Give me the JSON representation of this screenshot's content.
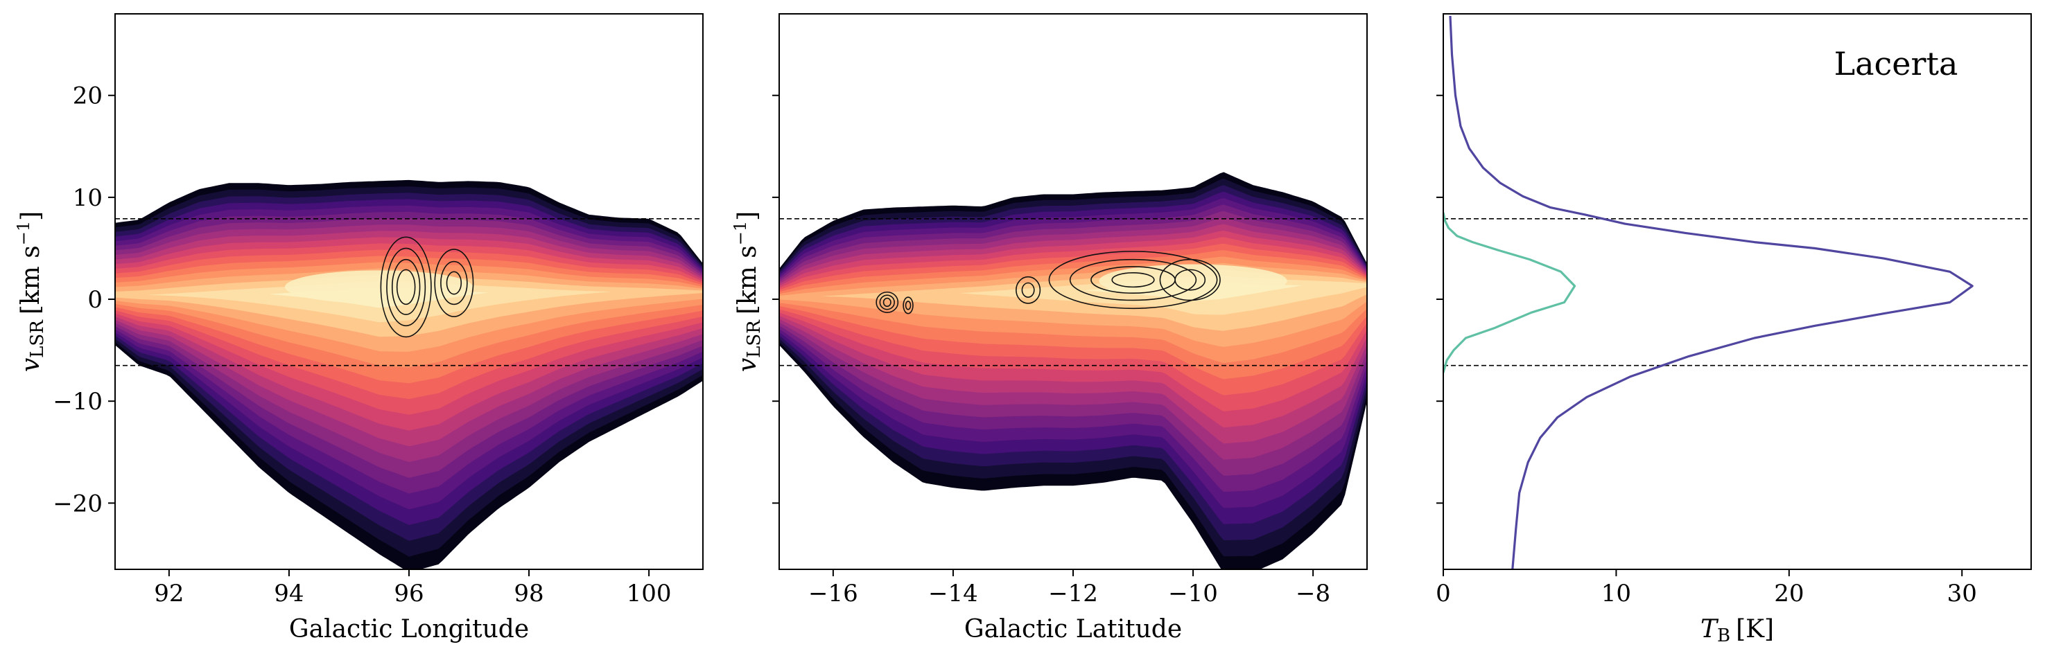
{
  "figure": {
    "panels": [
      "longitude-velocity",
      "latitude-velocity",
      "spectrum"
    ]
  },
  "chart_data": [
    {
      "type": "heatmap",
      "title": "",
      "xlabel": "Galactic Longitude",
      "ylabel_main": "v",
      "ylabel_sub": "LSR",
      "ylabel_unit": "[km s",
      "ylabel_exp": "−1",
      "ylabel_end": "]",
      "xlim": [
        91.1,
        100.9
      ],
      "ylim": [
        -26.5,
        28
      ],
      "xticks": [
        92,
        94,
        96,
        98,
        100
      ],
      "xtick_labels": [
        "92",
        "94",
        "96",
        "98",
        "100"
      ],
      "yticks": [
        20,
        10,
        0,
        -10,
        -20
      ],
      "ytick_labels": [
        "20",
        "10",
        "0",
        "−10",
        "−20"
      ],
      "hlines": [
        7.9,
        -6.5
      ],
      "colormap": "magma",
      "envelope": {
        "x": [
          91.1,
          91.5,
          92.0,
          92.5,
          93.0,
          93.5,
          94.0,
          94.5,
          95.0,
          95.5,
          96.0,
          96.5,
          97.0,
          97.5,
          98.0,
          98.5,
          99.0,
          99.5,
          100.0,
          100.5,
          100.9
        ],
        "top": [
          7.5,
          7.8,
          9.5,
          10.8,
          11.4,
          11.4,
          11.2,
          11.3,
          11.5,
          11.6,
          11.7,
          11.5,
          11.6,
          11.5,
          11.0,
          9.5,
          8.3,
          8.0,
          7.9,
          6.5,
          3.5
        ],
        "bottom": [
          -4.5,
          -6.5,
          -7.5,
          -10.5,
          -13.5,
          -16.5,
          -19.0,
          -21.0,
          -23.0,
          -25.0,
          -26.8,
          -26.0,
          -23.0,
          -20.5,
          -18.5,
          -16.0,
          -14.0,
          -12.5,
          -11.0,
          -9.5,
          -8.0
        ]
      },
      "peak": {
        "x": 95.5,
        "y": 1.2
      },
      "ridge": {
        "x": [
          91.1,
          100.9
        ],
        "y": [
          0.4,
          0.8
        ]
      },
      "contours": [
        {
          "cx": 95.95,
          "cy": 1.2,
          "rx": [
            0.15,
            0.23,
            0.32,
            0.42
          ],
          "ry": [
            1.7,
            2.7,
            3.8,
            4.9
          ]
        },
        {
          "cx": 96.75,
          "cy": 1.6,
          "rx": [
            0.12,
            0.22,
            0.32
          ],
          "ry": [
            1.1,
            2.1,
            3.3
          ]
        }
      ]
    },
    {
      "type": "heatmap",
      "title": "",
      "xlabel": "Galactic Latitude",
      "ylabel_main": "v",
      "ylabel_sub": "LSR",
      "ylabel_unit": "[km s",
      "ylabel_exp": "−1",
      "ylabel_end": "]",
      "xlim": [
        -16.9,
        -7.1
      ],
      "ylim": [
        -26.5,
        28
      ],
      "xticks": [
        -16,
        -14,
        -12,
        -10,
        -8
      ],
      "xtick_labels": [
        "−16",
        "−14",
        "−12",
        "−10",
        "−8"
      ],
      "yticks": [
        20,
        10,
        0,
        -10,
        -20
      ],
      "ytick_labels": [
        "",
        "",
        "",
        "",
        ""
      ],
      "hlines": [
        7.9,
        -6.5
      ],
      "colormap": "magma",
      "envelope": {
        "x": [
          -16.9,
          -16.5,
          -16.0,
          -15.5,
          -15.0,
          -14.5,
          -14.0,
          -13.5,
          -13.0,
          -12.5,
          -12.0,
          -11.5,
          -11.0,
          -10.5,
          -10.0,
          -9.5,
          -9.0,
          -8.5,
          -8.0,
          -7.5,
          -7.1
        ],
        "top": [
          3.0,
          6.0,
          7.7,
          8.8,
          9.0,
          9.1,
          9.2,
          9.1,
          10.0,
          10.3,
          10.3,
          10.5,
          10.6,
          10.7,
          11.0,
          12.5,
          11.2,
          10.5,
          9.6,
          8.0,
          3.5
        ],
        "bottom": [
          -4.5,
          -7.0,
          -10.5,
          -13.5,
          -16.0,
          -18.0,
          -18.5,
          -18.8,
          -18.5,
          -18.3,
          -18.3,
          -18.0,
          -17.5,
          -17.8,
          -22.0,
          -26.8,
          -26.8,
          -25.5,
          -23.0,
          -20.0,
          -10.0
        ]
      },
      "peak": {
        "x": -10.0,
        "y": 1.8
      },
      "ridge": {
        "x": [
          -16.9,
          -7.1
        ],
        "y": [
          0.2,
          1.5
        ]
      },
      "contours": [
        {
          "cx": -11.0,
          "cy": 1.9,
          "rx": [
            0.35,
            0.7,
            1.05,
            1.4
          ],
          "ry": [
            0.7,
            1.3,
            2.0,
            2.8
          ]
        },
        {
          "cx": -10.05,
          "cy": 1.9,
          "rx": [
            0.25,
            0.5
          ],
          "ry": [
            1.0,
            2.0
          ]
        },
        {
          "cx": -12.75,
          "cy": 0.9,
          "rx": [
            0.1,
            0.2
          ],
          "ry": [
            0.7,
            1.3
          ]
        },
        {
          "cx": -15.1,
          "cy": -0.3,
          "rx": [
            0.06,
            0.12,
            0.18
          ],
          "ry": [
            0.4,
            0.7,
            1.0
          ]
        },
        {
          "cx": -14.75,
          "cy": -0.6,
          "rx": [
            0.04,
            0.08
          ],
          "ry": [
            0.4,
            0.8
          ]
        }
      ]
    },
    {
      "type": "line",
      "title": "",
      "annotation": "Lacerta",
      "xlabel_main": "T",
      "xlabel_sub": "B",
      "xlabel_unit": "[K]",
      "xlim": [
        0,
        34
      ],
      "ylim": [
        -26.5,
        28
      ],
      "xticks": [
        0,
        10,
        20,
        30
      ],
      "xtick_labels": [
        "0",
        "10",
        "20",
        "30"
      ],
      "yticks": [
        20,
        10,
        0,
        -10,
        -20
      ],
      "ytick_labels": [
        "",
        "",
        "",
        "",
        ""
      ],
      "hlines": [
        7.9,
        -6.5
      ],
      "series": [
        {
          "color": "#5046a0",
          "x": [
            0.4,
            0.5,
            0.7,
            1.0,
            1.5,
            2.3,
            3.3,
            4.6,
            6.2,
            8.2,
            10.5,
            14.0,
            18.0,
            21.5,
            25.5,
            29.3,
            30.6,
            29.3,
            25.5,
            21.5,
            18.0,
            14.2,
            10.8,
            8.3,
            6.6,
            5.6,
            4.9,
            4.4,
            4.2,
            4.0
          ],
          "y": [
            27.8,
            24,
            20,
            17,
            14.8,
            12.9,
            11.4,
            10.1,
            9.0,
            8.3,
            7.4,
            6.5,
            5.6,
            5.0,
            4.0,
            2.7,
            1.3,
            -0.3,
            -1.4,
            -2.6,
            -3.8,
            -5.6,
            -7.6,
            -9.6,
            -11.6,
            -13.6,
            -16.0,
            -19.0,
            -22.5,
            -26.5
          ]
        },
        {
          "color": "#5fc0a4",
          "x": [
            0.0,
            0.1,
            0.3,
            0.8,
            1.7,
            3.2,
            5.0,
            6.8,
            7.6,
            7.0,
            5.1,
            3.0,
            1.3,
            0.6,
            0.2,
            0.0
          ],
          "y": [
            8.5,
            7.7,
            7.0,
            6.2,
            5.6,
            4.8,
            3.9,
            2.7,
            1.3,
            -0.3,
            -1.3,
            -2.8,
            -3.8,
            -5.0,
            -6.0,
            -7.2
          ]
        }
      ]
    }
  ]
}
